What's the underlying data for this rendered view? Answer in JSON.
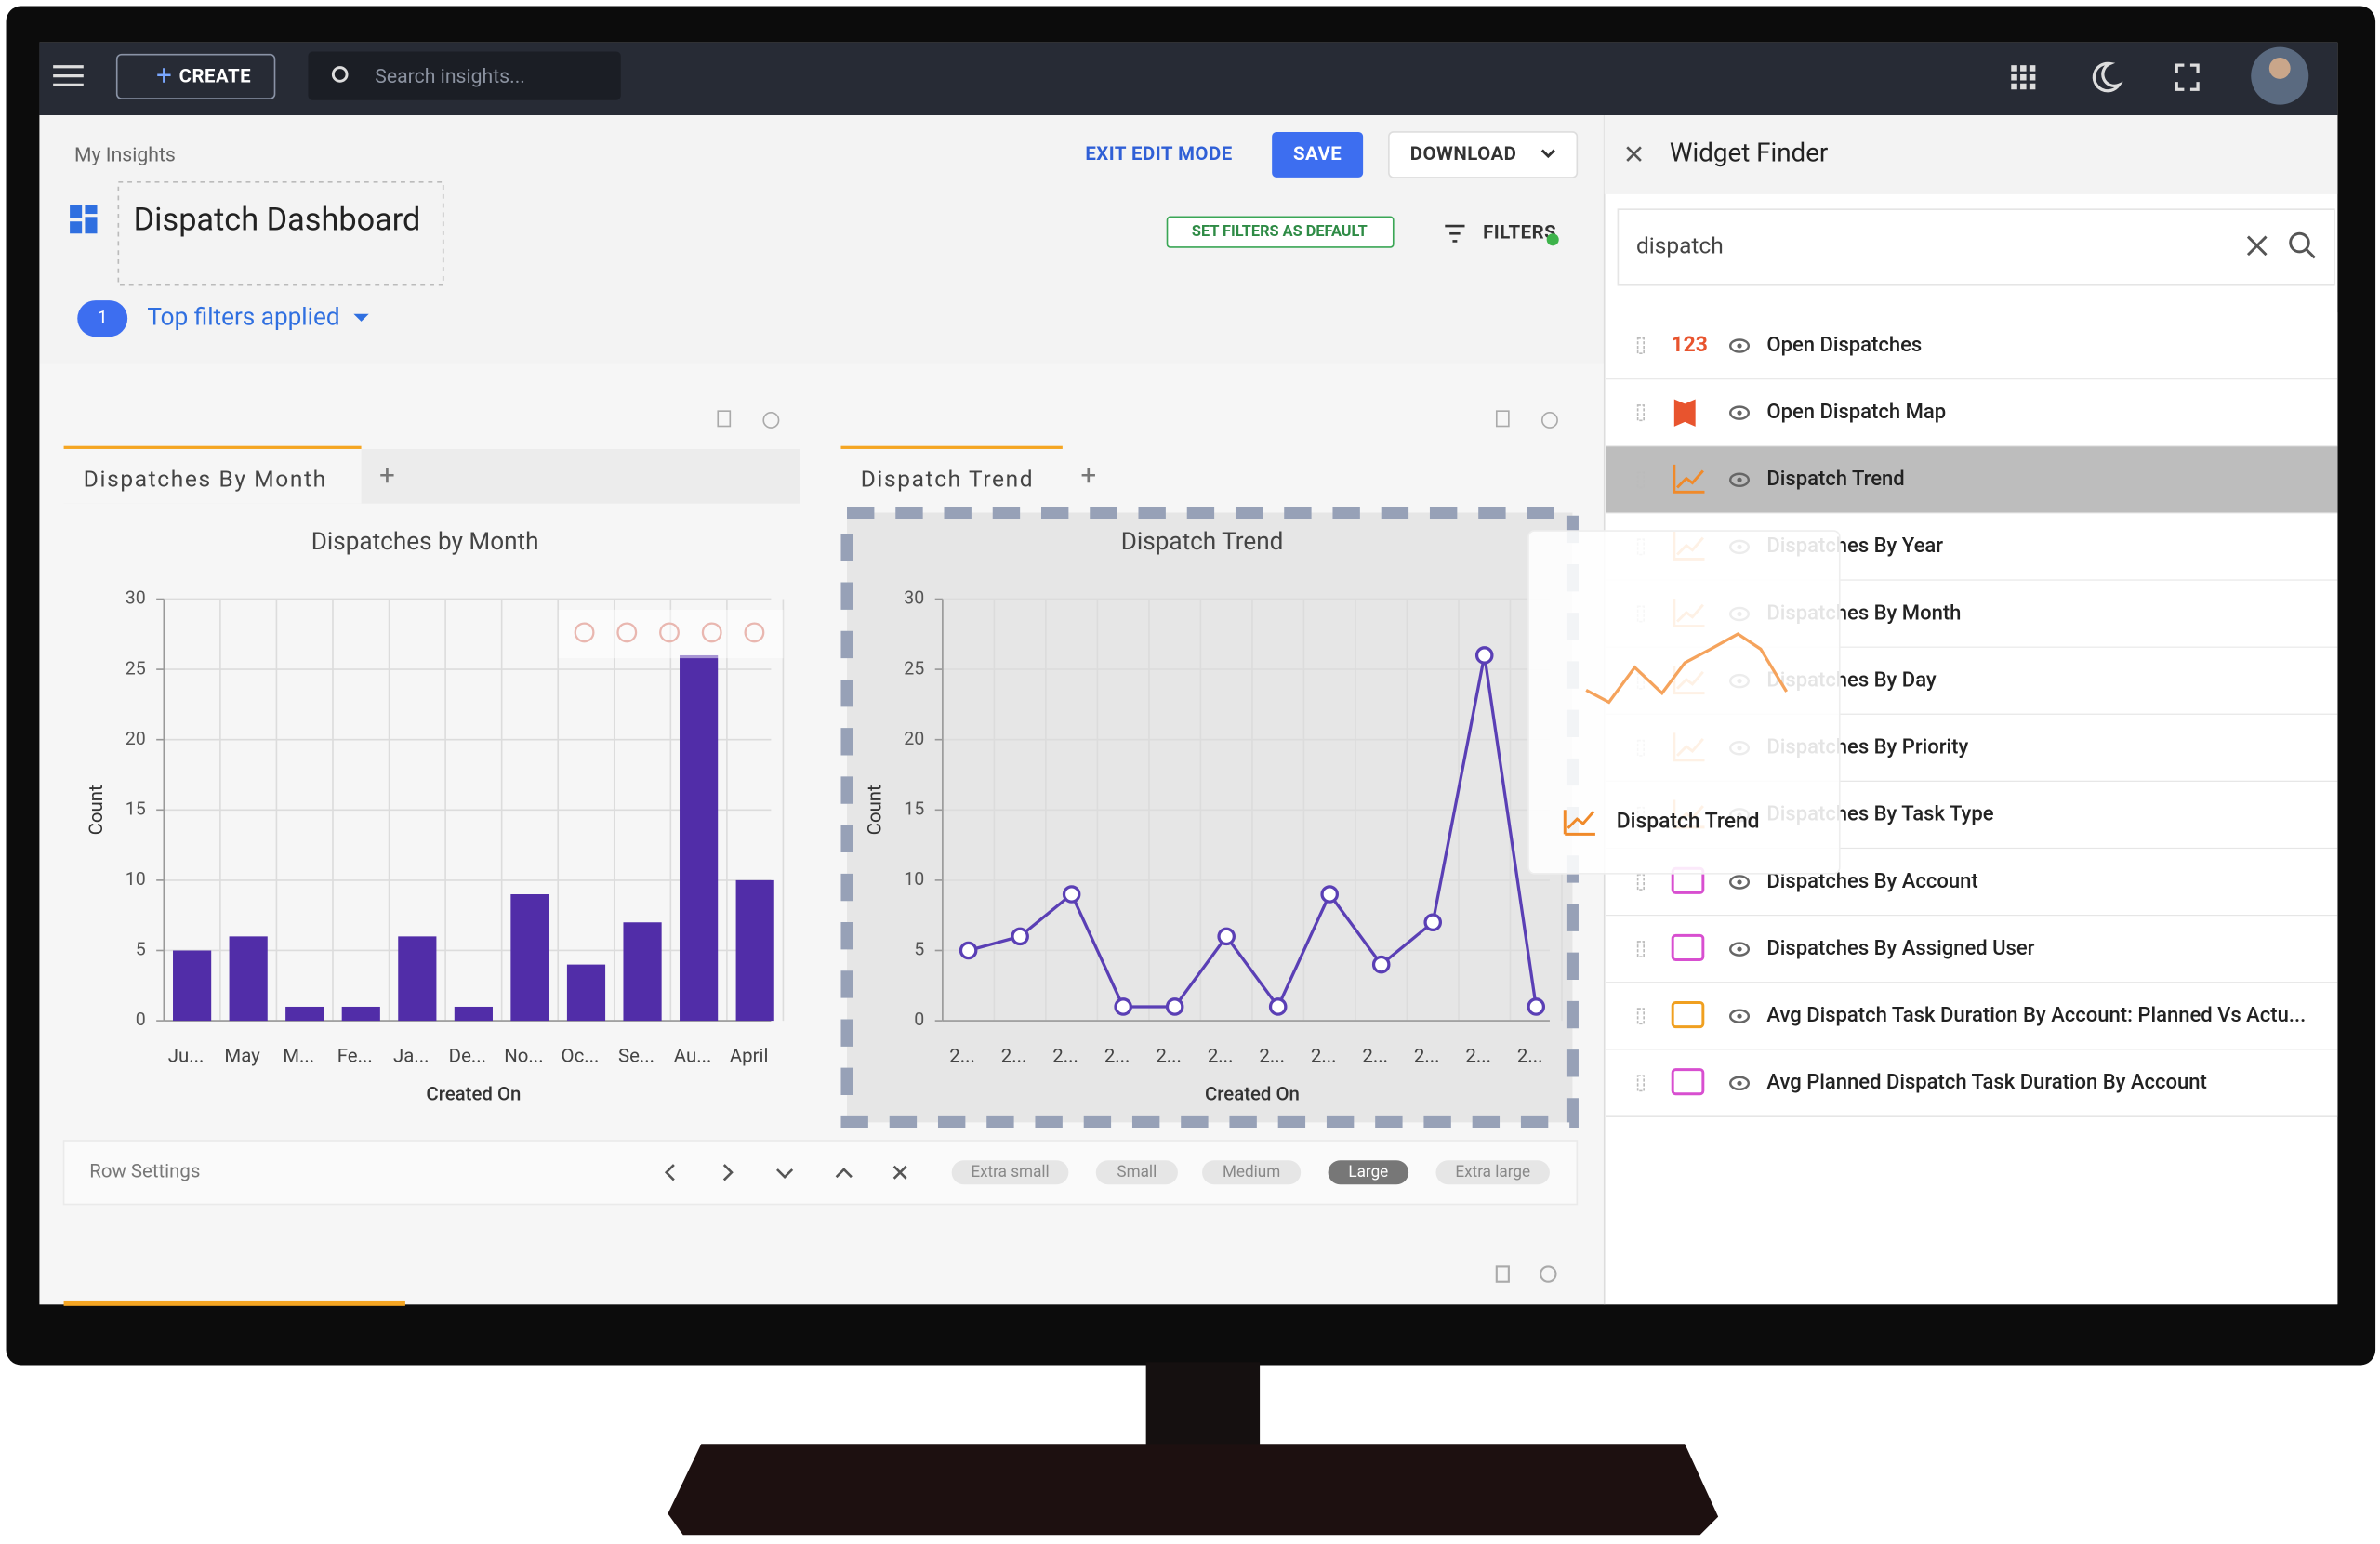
{
  "topbar": {
    "create": "CREATE",
    "search_placeholder": "Search insights..."
  },
  "header": {
    "breadcrumb": "My Insights",
    "exit": "EXIT EDIT MODE",
    "save": "SAVE",
    "download": "DOWNLOAD",
    "title": "Dispatch Dashboard",
    "set_default": "SET FILTERS AS DEFAULT",
    "filters": "FILTERS",
    "filter_count": 1,
    "filters_applied": "Top filters applied"
  },
  "charts": [
    {
      "type": "bar",
      "tab": "Dispatches By Month",
      "title": "Dispatches by Month",
      "categories": [
        "Ju...",
        "May",
        "M...",
        "Fe...",
        "Ja...",
        "De...",
        "No...",
        "Oc...",
        "Se...",
        "Au...",
        "April"
      ],
      "values": [
        5,
        6,
        1,
        1,
        6,
        1,
        9,
        4,
        7,
        26,
        10
      ],
      "color": "#512da8",
      "ylim": [
        0,
        30
      ],
      "yticks": [
        0,
        5,
        10,
        15,
        20,
        25,
        30
      ],
      "x_label": "Created On",
      "y_label": "Count"
    },
    {
      "type": "line",
      "tab": "Dispatch Trend",
      "title": "Dispatch Trend",
      "categories": [
        "2...",
        "2...",
        "2...",
        "2...",
        "2...",
        "2...",
        "2...",
        "2...",
        "2...",
        "2...",
        "2...",
        "2..."
      ],
      "values": [
        5,
        6,
        9,
        1,
        1,
        6,
        1,
        9,
        4,
        7,
        26,
        1
      ],
      "color": "#5a3fb5",
      "ylim": [
        0,
        30
      ],
      "yticks": [
        0,
        5,
        10,
        15,
        20,
        25,
        30
      ],
      "x_label": "Created On",
      "y_label": "Count"
    }
  ],
  "row_settings": {
    "label": "Row Settings",
    "sizes": [
      "Extra small",
      "Small",
      "Medium",
      "Large",
      "Extra large"
    ],
    "selected": 3
  },
  "widget_finder": {
    "title": "Widget Finder",
    "query": "dispatch",
    "count_icon": "123",
    "selected": 2,
    "drag_label": "Dispatch Trend",
    "items": [
      "Open Dispatches",
      "Open Dispatch Map",
      "Dispatch Trend",
      "Dispatches By Year",
      "Dispatches By Month",
      "Dispatches By Day",
      "Dispatches By Priority",
      "Dispatches By Task Type",
      "Dispatches By Account",
      "Dispatches By Assigned User",
      "Avg Dispatch Task Duration By Account: Planned Vs Actu...",
      "Avg Planned Dispatch Task Duration By Account"
    ]
  }
}
